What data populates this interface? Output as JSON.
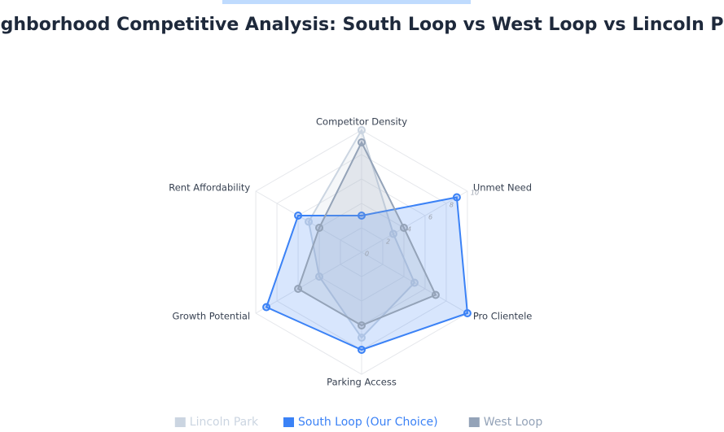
{
  "chart_data": {
    "type": "radar",
    "title": "Neighborhood Competitive Analysis: South Loop vs West Loop vs Lincoln Park",
    "categories": [
      "Competitor Density",
      "Unmet Need",
      "Pro Clientele",
      "Parking Access",
      "Growth Potential",
      "Rent Affordability"
    ],
    "series": [
      {
        "name": "Lincoln Park",
        "color": "#cbd5e1",
        "values": [
          10,
          3,
          5,
          7,
          4,
          5
        ]
      },
      {
        "name": "South Loop (Our Choice)",
        "color": "#3b82f6",
        "values": [
          3,
          9,
          10,
          8,
          9,
          6
        ]
      },
      {
        "name": "West Loop",
        "color": "#94a3b8",
        "values": [
          9,
          4,
          7,
          6,
          6,
          4
        ]
      }
    ],
    "ylim": [
      0,
      10
    ],
    "yticks": [
      0,
      2,
      4,
      6,
      8,
      10
    ],
    "grid": true
  }
}
